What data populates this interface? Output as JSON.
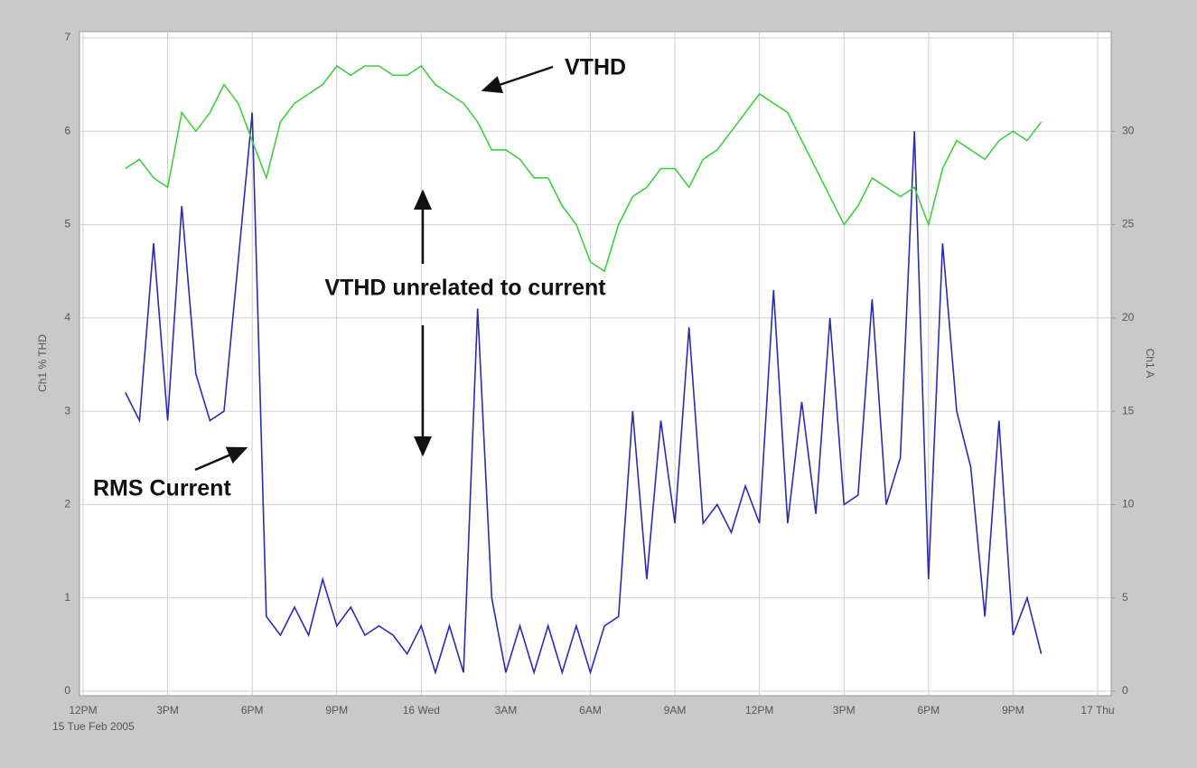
{
  "chart_data": {
    "type": "line",
    "subtitle": "15 Tue Feb 2005",
    "y_label": "Ch1 % THD",
    "y2_label": "Ch1 A",
    "annotations": [
      "VTHD unrelated to current"
    ],
    "x": [
      1.5,
      2,
      2.5,
      3,
      3.5,
      4,
      4.5,
      5,
      5.5,
      6,
      6.5,
      7,
      7.5,
      8,
      8.5,
      9,
      9.5,
      10,
      10.5,
      11,
      11.5,
      12,
      12.5,
      13,
      13.5,
      14,
      14.5,
      15,
      15.5,
      16,
      16.5,
      17,
      17.5,
      18,
      18.5,
      19,
      19.5,
      20,
      20.5,
      21,
      21.5,
      22,
      22.5,
      23,
      23.5,
      24,
      24.5,
      25,
      25.5,
      26,
      26.5,
      27,
      27.5,
      28,
      28.5,
      29,
      29.5,
      30,
      30.5,
      31,
      31.5,
      32,
      32.5,
      33,
      33.5,
      34
    ],
    "series": [
      {
        "name": "VTHD",
        "color": "#3fd03f",
        "values": [
          5.6,
          5.7,
          5.5,
          5.4,
          6.2,
          6.0,
          6.2,
          6.5,
          6.3,
          5.9,
          5.5,
          6.1,
          6.3,
          6.4,
          6.5,
          6.7,
          6.6,
          6.7,
          6.7,
          6.6,
          6.6,
          6.7,
          6.5,
          6.4,
          6.3,
          6.1,
          5.8,
          5.8,
          5.7,
          5.5,
          5.5,
          5.2,
          5.0,
          4.6,
          4.5,
          5.0,
          5.3,
          5.4,
          5.6,
          5.6,
          5.4,
          5.7,
          5.8,
          6.0,
          6.2,
          6.4,
          6.3,
          6.2,
          5.9,
          5.6,
          5.3,
          5.0,
          5.2,
          5.5,
          5.4,
          5.3,
          5.4,
          5.0,
          5.6,
          5.9,
          5.8,
          5.7,
          5.9,
          6.0,
          5.9,
          6.1
        ]
      },
      {
        "name": "RMS Current",
        "color": "#2b2bb0",
        "axis": "y2",
        "values": [
          16,
          14.5,
          24,
          14.5,
          26,
          17,
          14.5,
          15,
          23,
          31,
          4,
          3,
          4.5,
          3,
          6,
          3.5,
          4.5,
          3,
          3.5,
          3,
          2,
          3.5,
          1,
          3.5,
          1,
          20.5,
          5,
          1,
          3.5,
          1,
          3.5,
          1,
          3.5,
          1,
          3.5,
          4,
          15,
          6,
          14.5,
          9,
          19.5,
          9,
          10,
          8.5,
          11,
          9,
          21.5,
          9,
          15.5,
          9.5,
          20,
          10,
          10.5,
          21,
          10,
          12.5,
          30,
          6,
          24,
          15,
          12,
          4,
          14.5,
          3,
          5,
          2
        ]
      }
    ],
    "xlim": [
      0,
      36
    ],
    "xticks": [
      {
        "value": 0,
        "label": "12PM"
      },
      {
        "value": 3,
        "label": "3PM"
      },
      {
        "value": 6,
        "label": "6PM"
      },
      {
        "value": 9,
        "label": "9PM"
      },
      {
        "value": 12,
        "label": "16 Wed"
      },
      {
        "value": 15,
        "label": "3AM"
      },
      {
        "value": 18,
        "label": "6AM"
      },
      {
        "value": 21,
        "label": "9AM"
      },
      {
        "value": 24,
        "label": "12PM"
      },
      {
        "value": 27,
        "label": "3PM"
      },
      {
        "value": 30,
        "label": "6PM"
      },
      {
        "value": 33,
        "label": "9PM"
      },
      {
        "value": 36,
        "label": "17 Thu"
      }
    ],
    "ylim": [
      0,
      7
    ],
    "yticks": [
      0,
      1,
      2,
      3,
      4,
      5,
      6,
      7
    ],
    "y2lim": [
      0,
      35
    ],
    "y2ticks": [
      0,
      5,
      10,
      15,
      20,
      25,
      30
    ],
    "grid": true
  }
}
